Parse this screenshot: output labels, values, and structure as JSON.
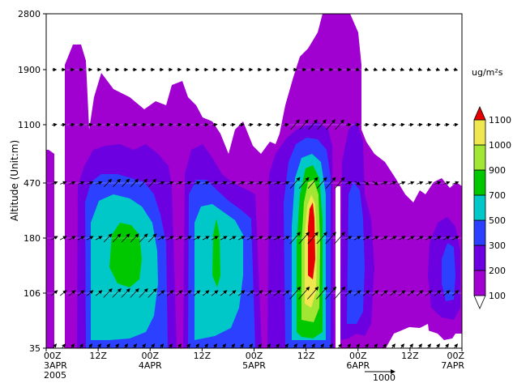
{
  "chart_data": {
    "type": "heatmap",
    "ylabel": "Altitude (Unit:m)",
    "y_ticks": [
      "2800",
      "1900",
      "1100",
      "470",
      "180",
      "106",
      "35"
    ],
    "x_ticks": [
      {
        "label": "00Z",
        "sub": "3APR",
        "sub2": "2005"
      },
      {
        "label": "12Z",
        "sub": "",
        "sub2": ""
      },
      {
        "label": "00Z",
        "sub": "4APR",
        "sub2": ""
      },
      {
        "label": "12Z",
        "sub": "",
        "sub2": ""
      },
      {
        "label": "00Z",
        "sub": "5APR",
        "sub2": ""
      },
      {
        "label": "12Z",
        "sub": "",
        "sub2": ""
      },
      {
        "label": "00Z",
        "sub": "6APR",
        "sub2": ""
      },
      {
        "label": "12Z",
        "sub": "",
        "sub2": ""
      },
      {
        "label": "00Z",
        "sub": "7APR",
        "sub2": ""
      }
    ],
    "colorbar": {
      "unit": "ug/m²s",
      "levels": [
        "100",
        "200",
        "300",
        "500",
        "700",
        "900",
        "1000",
        "1100"
      ],
      "colors": [
        "#ffffff",
        "#a000d0",
        "#6c00e0",
        "#2c40ff",
        "#00c8c8",
        "#00c800",
        "#a0e632",
        "#f0e650",
        "#e60000"
      ]
    },
    "vector_reference": "1000",
    "grid": false
  }
}
